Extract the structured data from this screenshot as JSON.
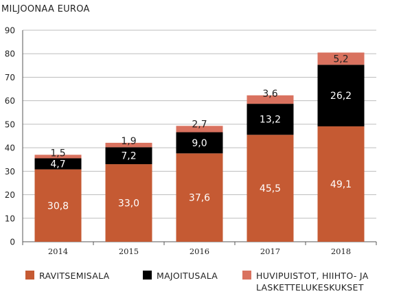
{
  "chart_data": {
    "type": "bar",
    "stacked": true,
    "unit_label": "MILJOONAA EUROA",
    "categories": [
      "2014",
      "2015",
      "2016",
      "2017",
      "2018"
    ],
    "series": [
      {
        "name": "RAVITSEMISALA",
        "values": [
          30.8,
          33.0,
          37.6,
          45.5,
          49.1
        ],
        "labels": [
          "30,8",
          "33,0",
          "37,6",
          "45,5",
          "49,1"
        ],
        "color": "#c55a33",
        "label_color": "#ffffff"
      },
      {
        "name": "MAJOITUSALA",
        "values": [
          4.7,
          7.2,
          9.0,
          13.2,
          26.2
        ],
        "labels": [
          "4,7",
          "7,2",
          "9,0",
          "13,2",
          "26,2"
        ],
        "color": "#000000",
        "label_color": "#ffffff"
      },
      {
        "name": "HUVIPUISTOT, HIIHTO- JA LASKETTELUKESKUKSET",
        "legend_lines": [
          "HUVIPUISTOT, HIIHTO- JA",
          "LASKETTELUKESKUKSET"
        ],
        "values": [
          1.5,
          1.9,
          2.7,
          3.6,
          5.2
        ],
        "labels": [
          "1,5",
          "1,9",
          "2,7",
          "3,6",
          "5,2"
        ],
        "color": "#d9725f",
        "label_color": "#222222"
      }
    ],
    "ylim": [
      0,
      90
    ],
    "yticks": [
      0,
      10,
      20,
      30,
      40,
      50,
      60,
      70,
      80,
      90
    ],
    "grid": true,
    "legend_position": "bottom"
  }
}
